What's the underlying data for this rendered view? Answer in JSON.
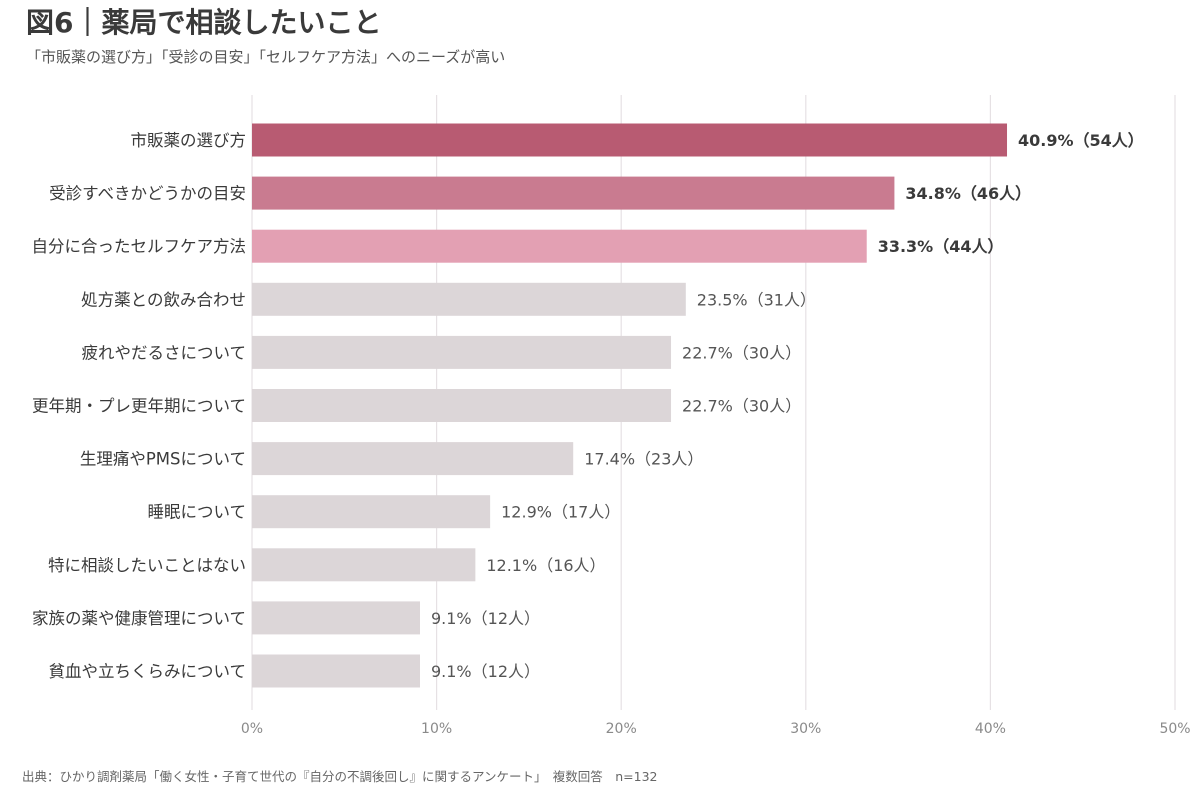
{
  "header": {
    "title": "図6｜薬局で相談したいこと",
    "subtitle": "「市販薬の選び方」「受診の目安」「セルフケア方法」へのニーズが高い"
  },
  "chart_data": {
    "type": "bar",
    "orientation": "horizontal",
    "categories": [
      "市販薬の選び方",
      "受診すべきかどうかの目安",
      "自分に合ったセルフケア方法",
      "処方薬との飲み合わせ",
      "疲れやだるさについて",
      "更年期・プレ更年期について",
      "生理痛やPMSについて",
      "睡眠について",
      "特に相談したいことはない",
      "家族の薬や健康管理について",
      "貧血や立ちくらみについて"
    ],
    "values": [
      40.9,
      34.8,
      33.3,
      23.5,
      22.7,
      22.7,
      17.4,
      12.9,
      12.1,
      9.1,
      9.1
    ],
    "counts": [
      "54人",
      "46人",
      "44人",
      "31人",
      "30人",
      "30人",
      "23人",
      "17人",
      "16人",
      "12人",
      "12人"
    ],
    "data_labels": [
      "40.9%（54人）",
      "34.8%（46人）",
      "33.3%（44人）",
      "23.5%（31人）",
      "22.7%（30人）",
      "22.7%（30人）",
      "17.4%（23人）",
      "12.9%（17人）",
      "12.1%（16人）",
      "9.1%（12人）",
      "9.1%（12人）"
    ],
    "highlight_colors": [
      "#b85b72",
      "#c97b90",
      "#e3a0b3"
    ],
    "default_color": "#dcd6d8",
    "xlim": [
      0,
      50
    ],
    "xticks": [
      0,
      10,
      20,
      30,
      40,
      50
    ],
    "xtick_labels": [
      "0%",
      "10%",
      "20%",
      "30%",
      "40%",
      "50%"
    ],
    "grid": true
  },
  "footer": {
    "source": "出典：ひかり調剤薬局「働く女性・子育て世代の『自分の不調後回し』に関するアンケート」　複数回答　n=132"
  }
}
